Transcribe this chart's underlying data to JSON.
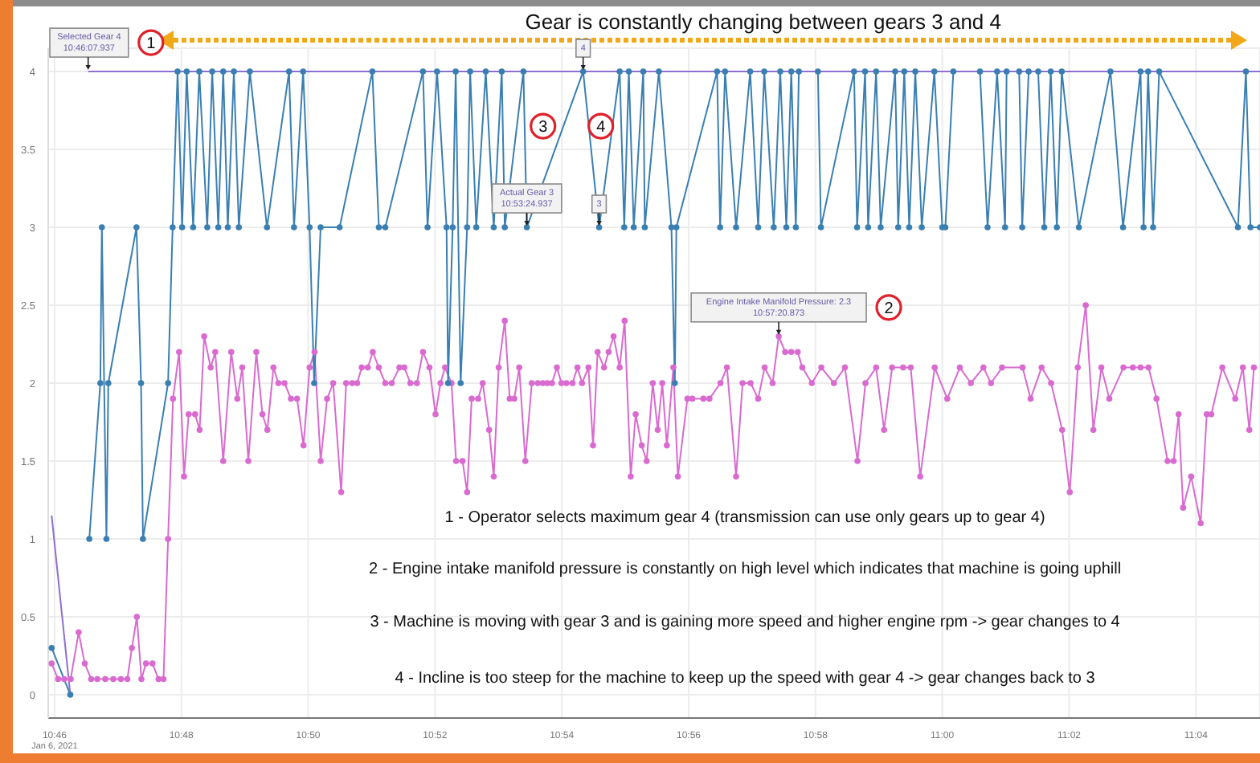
{
  "chart_data": {
    "type": "line",
    "ylim": [
      -0.15,
      4.15
    ],
    "yticks": [
      0,
      0.5,
      1,
      1.5,
      2,
      2.5,
      3,
      3.5,
      4
    ],
    "xlim": [
      10.765,
      11.0835
    ],
    "xticks": [
      {
        "value": 10.766667,
        "label": "10:46"
      },
      {
        "value": 10.8,
        "label": "10:48"
      },
      {
        "value": 10.833333,
        "label": "10:50"
      },
      {
        "value": 10.866667,
        "label": "10:52"
      },
      {
        "value": 10.9,
        "label": "10:54"
      },
      {
        "value": 10.933333,
        "label": "10:56"
      },
      {
        "value": 10.966667,
        "label": "10:58"
      },
      {
        "value": 11,
        "label": "11:00"
      },
      {
        "value": 11.033333,
        "label": "11:02"
      },
      {
        "value": 11.066667,
        "label": "11:04"
      }
    ],
    "grid": true,
    "series": [
      {
        "color": "#d96ad0",
        "marker": "circle",
        "x": [
          10.7659,
          10.7676,
          10.7692,
          10.7709,
          10.773,
          10.7746,
          10.7763,
          10.7779,
          10.78,
          10.7821,
          10.7841,
          10.7858,
          10.787,
          10.7883,
          10.7895,
          10.7907,
          10.7924,
          10.794,
          10.7953,
          10.7965,
          10.7978,
          10.7994,
          10.8007,
          10.8019,
          10.8036,
          10.8048,
          10.806,
          10.8077,
          10.8089,
          10.811,
          10.8131,
          10.8147,
          10.816,
          10.8176,
          10.8197,
          10.8213,
          10.8226,
          10.8242,
          10.8255,
          10.8271,
          10.8288,
          10.8304,
          10.8321,
          10.8337,
          10.835,
          10.8366,
          10.8383,
          10.8399,
          10.842,
          10.8433,
          10.8449,
          10.8462,
          10.8474,
          10.849,
          10.8503,
          10.8519,
          10.8536,
          10.8553,
          10.8573,
          10.8586,
          10.8602,
          10.8619,
          10.8635,
          10.8652,
          10.8668,
          10.8681,
          10.8693,
          10.871,
          10.8722,
          10.8739,
          10.8751,
          10.8763,
          10.878,
          10.8792,
          10.8809,
          10.8821,
          10.8834,
          10.885,
          10.8863,
          10.8875,
          10.8888,
          10.8904,
          10.8921,
          10.8937,
          10.895,
          10.8962,
          10.8974,
          10.8987,
          10.8999,
          10.9012,
          10.9028,
          10.9041,
          10.9053,
          10.907,
          10.9082,
          10.9094,
          10.9111,
          10.9123,
          10.9136,
          10.9152,
          10.9165,
          10.9181,
          10.9194,
          10.921,
          10.9223,
          10.9239,
          10.9252,
          10.9264,
          10.9276,
          10.9293,
          10.9305,
          10.933,
          10.9343,
          10.9372,
          10.9388,
          10.9417,
          10.9434,
          10.9458,
          10.9475,
          10.9496,
          10.9516,
          10.9533,
          10.9554,
          10.957,
          10.9587,
          10.9603,
          10.962,
          10.9632,
          10.9657,
          10.9682,
          10.9715,
          10.9744,
          10.9777,
          10.9798,
          10.9826,
          10.9847,
          10.9868,
          10.9897,
          10.9917,
          10.9942,
          10.998,
          11.0013,
          11.0046,
          11.0075,
          11.0108,
          11.0128,
          11.0157,
          11.0211,
          11.0232,
          11.0261,
          11.0286,
          11.0315,
          11.0335,
          11.0356,
          11.0377,
          11.0397,
          11.0418,
          11.0439,
          11.0476,
          11.0501,
          11.0521,
          11.0542,
          11.0563,
          11.0592,
          11.0608,
          11.0621,
          11.0633,
          11.0654,
          11.0679,
          11.0695,
          11.0707,
          11.0736,
          11.077,
          11.079,
          11.0807,
          11.0819
        ],
        "values": [
          0.2,
          0.1,
          0.1,
          0.1,
          0.4,
          0.2,
          0.1,
          0.1,
          0.1,
          0.1,
          0.1,
          0.1,
          0.3,
          0.5,
          0.1,
          0.2,
          0.2,
          0.1,
          0.1,
          1.0,
          1.9,
          2.2,
          1.4,
          1.8,
          1.8,
          1.7,
          2.3,
          2.1,
          2.2,
          1.5,
          2.2,
          1.9,
          2.1,
          1.5,
          2.2,
          1.8,
          1.7,
          2.1,
          2.0,
          2.0,
          1.9,
          1.9,
          1.6,
          2.1,
          2.2,
          1.5,
          1.9,
          2.0,
          1.3,
          2.0,
          2.0,
          2.0,
          2.1,
          2.1,
          2.2,
          2.1,
          2.0,
          2.0,
          2.1,
          2.1,
          2.0,
          2.0,
          2.2,
          2.1,
          1.8,
          2.0,
          2.1,
          2.0,
          1.5,
          1.5,
          1.3,
          1.9,
          1.9,
          2.0,
          1.7,
          1.4,
          2.1,
          2.4,
          1.9,
          1.9,
          2.1,
          1.5,
          2.0,
          2.0,
          2.0,
          2.0,
          2.0,
          2.1,
          2.0,
          2.0,
          2.0,
          2.1,
          2.0,
          2.1,
          1.6,
          2.2,
          2.1,
          2.2,
          2.3,
          2.1,
          2.4,
          1.4,
          1.8,
          1.6,
          1.5,
          2.0,
          1.7,
          2.0,
          1.6,
          2.1,
          1.4,
          1.9,
          1.9,
          1.9,
          1.9,
          2.0,
          2.1,
          1.4,
          2.0,
          2.0,
          1.9,
          2.1,
          2.0,
          2.3,
          2.2,
          2.2,
          2.2,
          2.1,
          2.0,
          2.1,
          2.0,
          2.1,
          1.5,
          2.0,
          2.1,
          1.7,
          2.1,
          2.1,
          2.1,
          1.4,
          2.1,
          1.9,
          2.1,
          2.0,
          2.1,
          2.0,
          2.1,
          2.1,
          1.9,
          2.1,
          2.0,
          1.7,
          1.3,
          2.1,
          2.5,
          1.7,
          2.1,
          1.9,
          2.1,
          2.1,
          2.1,
          2.1,
          1.9,
          1.5,
          1.5,
          1.8,
          1.2,
          1.4,
          1.1,
          1.8,
          1.8,
          2.1,
          1.9,
          2.1,
          1.7,
          2.1
        ]
      },
      {
        "color": "#3a7fb2",
        "marker": "circle",
        "x": [
          10.7659,
          10.7708,
          10.7717,
          10.7754,
          10.7758,
          10.7787,
          10.7791,
          10.7803,
          10.7808,
          10.7882,
          10.7894,
          10.7899,
          10.7965,
          10.7977,
          10.799,
          10.8002,
          10.8014,
          10.8031,
          10.8047,
          10.8068,
          10.8081,
          10.8097,
          10.811,
          10.8122,
          10.8138,
          10.8151,
          10.818,
          10.8225,
          10.8283,
          10.8296,
          10.832,
          10.8337,
          10.8349,
          10.8366,
          10.8416,
          10.8502,
          10.8519,
          10.8536,
          10.8635,
          10.8647,
          10.8672,
          10.8697,
          10.8701,
          10.8713,
          10.8721,
          10.8734,
          10.8751,
          10.8759,
          10.8775,
          10.88,
          10.8821,
          10.8842,
          10.885,
          10.8899,
          10.8908,
          10.9056,
          10.9098,
          10.9152,
          10.9164,
          10.9176,
          10.9189,
          10.9214,
          10.9218,
          10.9255,
          10.9288,
          10.9297,
          10.9301,
          10.9408,
          10.9416,
          10.9429,
          10.9458,
          10.9495,
          10.9516,
          10.9532,
          10.9557,
          10.9574,
          10.959,
          10.9603,
          10.9615,
          10.9623,
          10.9673,
          10.9681,
          10.9768,
          10.9776,
          10.9797,
          10.9805,
          10.9826,
          10.9838,
          10.9876,
          10.9884,
          10.99,
          10.9913,
          10.9929,
          10.9946,
          10.9979,
          11.0,
          11.0008,
          11.0029,
          11.0099,
          11.0119,
          11.0144,
          11.0165,
          11.0169,
          11.0202,
          11.021,
          11.0227,
          11.0252,
          11.0268,
          11.0285,
          11.0301,
          11.0314,
          11.0359,
          11.0442,
          11.0475,
          11.0521,
          11.0529,
          11.0541,
          11.0554,
          11.057,
          11.0777,
          11.0798,
          11.081,
          11.0835
        ],
        "values": [
          0.3,
          0,
          null,
          null,
          1,
          2,
          3,
          1,
          2,
          3,
          2,
          1,
          2,
          3,
          4,
          3,
          4,
          3,
          4,
          3,
          4,
          3,
          4,
          3,
          4,
          3,
          4,
          3,
          4,
          3,
          4,
          3,
          2,
          3,
          3,
          4,
          3,
          3,
          4,
          3,
          4,
          3,
          2,
          3,
          4,
          2,
          3,
          4,
          3,
          4,
          3,
          4,
          3,
          4,
          3,
          4,
          3,
          4,
          3,
          4,
          3,
          4,
          3,
          4,
          3,
          2,
          3,
          4,
          3,
          4,
          3,
          4,
          3,
          4,
          3,
          4,
          3,
          4,
          3,
          4,
          4,
          3,
          4,
          3,
          4,
          3,
          4,
          3,
          4,
          3,
          4,
          3,
          4,
          3,
          4,
          3,
          3,
          4,
          4,
          3,
          4,
          3,
          4,
          4,
          3,
          4,
          4,
          3,
          4,
          3,
          4,
          3,
          4,
          3,
          4,
          3,
          4,
          3,
          4,
          3,
          4,
          3,
          3
        ]
      },
      {
        "color": "#8b6fd3",
        "marker": "none",
        "x": [
          10.7659,
          10.7708,
          10.7717,
          10.7754,
          10.7755,
          11.0835
        ],
        "values": [
          1.15,
          0,
          null,
          null,
          4,
          4
        ]
      }
    ],
    "annotations": [
      "Gear is constantly changing between gears 3 and 4",
      "1 - Operator selects maximum gear 4 (transmission can use only gears up to gear 4)",
      "2 - Engine intake manifold pressure is constantly on high level which indicates that machine is going uphill",
      "3 - Machine is moving with gear 3 and is gaining more speed and higher engine rpm -> gear changes to 4",
      "4 - Incline is too steep for the machine to keep up the speed with gear 4 -> gear changes back to 3",
      "Jan 6, 2021",
      {
        "text": "Selected Gear 4\n10:46:07.937",
        "x": 10.7755,
        "y": 4
      },
      {
        "text": "Actual Gear 3\n10:53:24.937",
        "x": 10.8908,
        "y": 3
      },
      {
        "text": "4",
        "x": 10.9056,
        "y": 4
      },
      {
        "text": "3",
        "x": 10.9098,
        "y": 3
      },
      {
        "text": "Engine Intake Manifold Pressure: 2.3\n10:57:20.873",
        "x": 10.957,
        "y": 2.3
      },
      "1",
      "2",
      "3",
      "4"
    ]
  }
}
